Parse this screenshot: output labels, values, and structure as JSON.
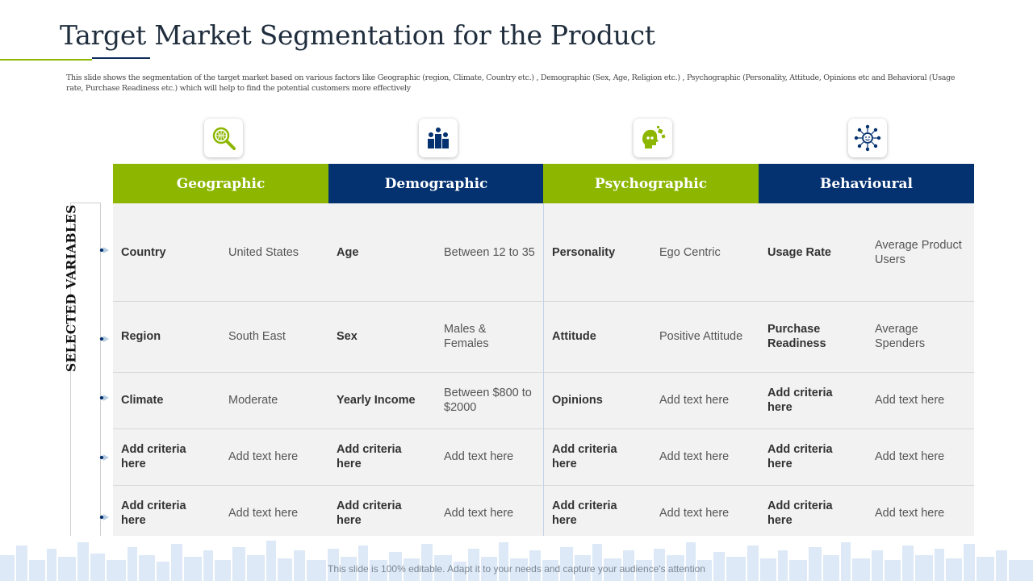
{
  "title": "Target Market Segmentation for the Product",
  "subtitle": "This slide shows the segmentation of the target market based on various factors like Geographic (region, Climate, Country etc.) , Demographic (Sex, Age, Religion etc.) , Psychographic (Personality, Attitude, Opinions etc and Behavioral (Usage rate, Purchase Readiness etc.) which will help to find the potential customers more effectively",
  "side_label": "SELECTED VARIABLES",
  "colors": {
    "green": "#8cb600",
    "navy": "#043170"
  },
  "columns": [
    {
      "header": "Geographic",
      "icon": "magnifier-globe-icon",
      "rows": [
        {
          "criteria": "Country",
          "value": "United States"
        },
        {
          "criteria": "Region",
          "value": "South East"
        },
        {
          "criteria": "Climate",
          "value": "Moderate"
        },
        {
          "criteria": "Add criteria here",
          "value": "Add text here"
        },
        {
          "criteria": "Add criteria here",
          "value": "Add text here"
        }
      ]
    },
    {
      "header": "Demographic",
      "icon": "people-podium-icon",
      "rows": [
        {
          "criteria": "Age",
          "value": "Between 12 to 35"
        },
        {
          "criteria": "Sex",
          "value": "Males & Females"
        },
        {
          "criteria": "Yearly Income",
          "value": "Between $800 to $2000"
        },
        {
          "criteria": "Add criteria here",
          "value": "Add text here"
        },
        {
          "criteria": "Add criteria here",
          "value": "Add text here"
        }
      ]
    },
    {
      "header": "Psychographic",
      "icon": "head-puzzle-icon",
      "rows": [
        {
          "criteria": "Personality",
          "value": "Ego Centric"
        },
        {
          "criteria": "Attitude",
          "value": "Positive Attitude"
        },
        {
          "criteria": "Opinions",
          "value": "Add text here"
        },
        {
          "criteria": "Add criteria here",
          "value": "Add text here"
        },
        {
          "criteria": "Add criteria here",
          "value": "Add text here"
        }
      ]
    },
    {
      "header": "Behavioural",
      "icon": "smiley-network-icon",
      "rows": [
        {
          "criteria": "Usage Rate",
          "value": "Average Product Users"
        },
        {
          "criteria": "Purchase Readiness",
          "value": "Average Spenders"
        },
        {
          "criteria": "Add criteria here",
          "value": "Add text here"
        },
        {
          "criteria": "Add criteria here",
          "value": "Add text here"
        },
        {
          "criteria": "Add criteria here",
          "value": "Add text here"
        }
      ]
    }
  ],
  "footer": "This slide is 100% editable. Adapt it to your needs and capture your audience's attention"
}
